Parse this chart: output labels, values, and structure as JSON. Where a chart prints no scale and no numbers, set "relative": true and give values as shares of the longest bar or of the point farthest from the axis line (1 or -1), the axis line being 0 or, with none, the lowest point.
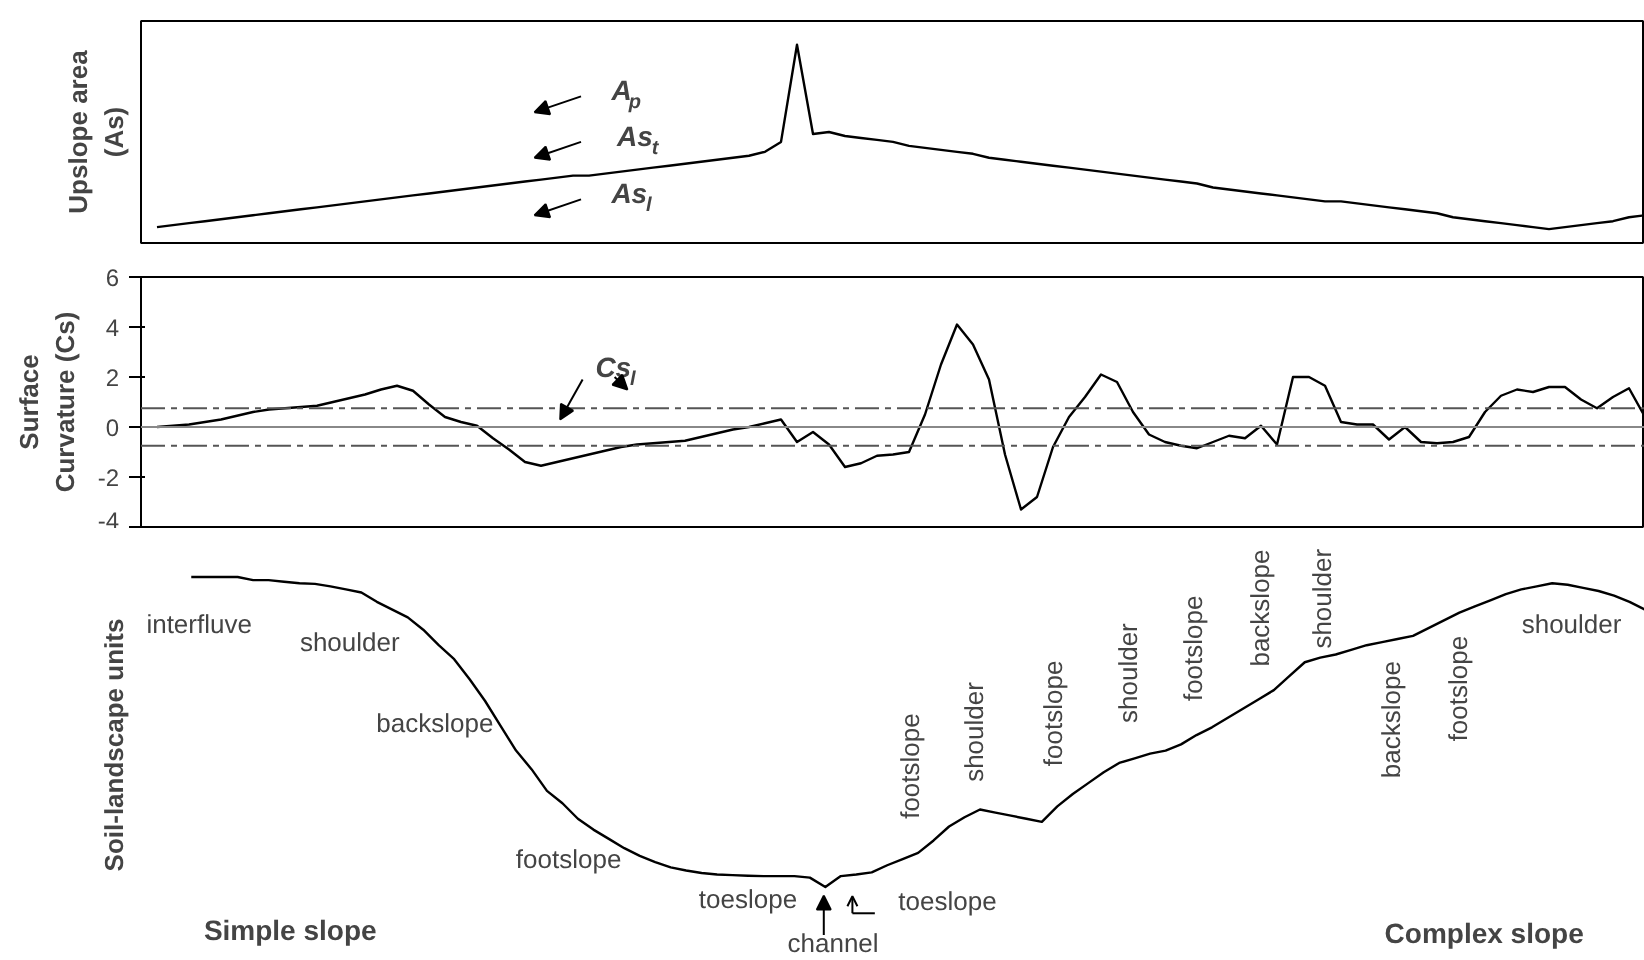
{
  "chart_data": [
    {
      "type": "line",
      "ylabel": "Upslope area\n(As)",
      "relative": true,
      "tick_labels": false,
      "color": "#000000",
      "categories": [
        null,
        null,
        null,
        null,
        null,
        null,
        null,
        null,
        null,
        null,
        null,
        null,
        null,
        null,
        null,
        null,
        null,
        null,
        null,
        null,
        null,
        null,
        null,
        null,
        null,
        null,
        null,
        null,
        null,
        null,
        null,
        null,
        null,
        null,
        null,
        null,
        null,
        null,
        null,
        null,
        null,
        null,
        null,
        null,
        null,
        null,
        null,
        null,
        null,
        null,
        null,
        null,
        null,
        null,
        null,
        null,
        null,
        null,
        null,
        null,
        null,
        null,
        null,
        null,
        null,
        null,
        null,
        null,
        null,
        null,
        null,
        null,
        null,
        null,
        null,
        null,
        null,
        null,
        null,
        null,
        null,
        null,
        null,
        null,
        null,
        null,
        null,
        null,
        null,
        null,
        null,
        null,
        null,
        null,
        null
      ],
      "values": [
        null,
        0.08,
        0.09,
        0.1,
        0.11,
        0.12,
        0.13,
        0.14,
        0.15,
        0.16,
        0.17,
        0.18,
        0.19,
        0.2,
        0.21,
        0.22,
        0.23,
        0.24,
        0.25,
        0.26,
        0.27,
        0.28,
        0.29,
        0.3,
        0.31,
        0.32,
        0.33,
        0.34,
        0.34,
        0.35,
        0.36,
        0.37,
        0.38,
        0.39,
        0.4,
        0.41,
        0.42,
        0.43,
        0.44,
        0.46,
        0.51,
        1,
        0.55,
        0.56,
        0.54,
        0.53,
        0.52,
        0.51,
        0.49,
        0.48,
        0.47,
        0.46,
        0.45,
        0.43,
        0.42,
        0.41,
        0.4,
        0.39,
        0.38,
        0.37,
        0.36,
        0.35,
        0.34,
        0.33,
        0.32,
        0.31,
        0.3,
        0.28,
        0.27,
        0.26,
        0.25,
        0.24,
        0.23,
        0.22,
        0.21,
        0.21,
        0.2,
        0.19,
        0.18,
        0.17,
        0.16,
        0.15,
        0.13,
        0.12,
        0.11,
        0.1,
        0.09,
        0.08,
        0.07,
        0.08,
        0.09,
        0.1,
        0.11,
        0.13,
        0.14
      ],
      "annotations": [
        "A$_{p}$",
        "As$_{t}$",
        "As$_{l}$"
      ]
    },
    {
      "type": "line",
      "ylabel": "Surface\nCurvature (Cs)",
      "tick_labels": "y",
      "color": "#000000",
      "ylim": [
        -4,
        6
      ],
      "yticks": [
        -4,
        -2,
        0,
        2,
        4,
        6
      ],
      "categories": [
        null,
        null,
        null,
        null,
        null,
        null,
        null,
        null,
        null,
        null,
        null,
        null,
        null,
        null,
        null,
        null,
        null,
        null,
        null,
        null,
        null,
        null,
        null,
        null,
        null,
        null,
        null,
        null,
        null,
        null,
        null,
        null,
        null,
        null,
        null,
        null,
        null,
        null,
        null,
        null,
        null,
        null,
        null,
        null,
        null,
        null,
        null,
        null,
        null,
        null,
        null,
        null,
        null,
        null,
        null,
        null,
        null,
        null,
        null,
        null,
        null,
        null,
        null,
        null,
        null,
        null,
        null,
        null,
        null,
        null,
        null,
        null,
        null,
        null,
        null,
        null,
        null,
        null,
        null,
        null,
        null,
        null,
        null,
        null,
        null,
        null,
        null,
        null,
        null,
        null,
        null,
        null,
        null,
        null,
        null
      ],
      "values": [
        null,
        0,
        0.05,
        0.1,
        0.2,
        0.3,
        0.45,
        0.6,
        0.7,
        0.75,
        0.8,
        0.85,
        1.0,
        1.15,
        1.3,
        1.5,
        1.65,
        1.45,
        0.9,
        0.4,
        0.2,
        0.05,
        -0.45,
        -0.9,
        -1.4,
        -1.55,
        -1.4,
        -1.25,
        -1.1,
        -0.95,
        -0.8,
        -0.7,
        -0.65,
        -0.6,
        -0.55,
        -0.4,
        -0.25,
        -0.1,
        0,
        0.15,
        0.3,
        -0.6,
        -0.2,
        -0.7,
        -1.6,
        -1.45,
        -1.15,
        -1.1,
        -1.0,
        0.5,
        2.5,
        4.1,
        3.3,
        1.9,
        -1.1,
        -3.3,
        -2.8,
        -0.8,
        0.4,
        1.2,
        2.1,
        1.8,
        0.6,
        -0.3,
        -0.6,
        -0.75,
        -0.85,
        -0.6,
        -0.35,
        -0.45,
        0.05,
        -0.7,
        2.0,
        2.0,
        1.65,
        0.2,
        0.1,
        0.1,
        -0.5,
        0,
        -0.6,
        -0.65,
        -0.6,
        -0.4,
        0.6,
        1.25,
        1.5,
        1.4,
        1.6,
        1.6,
        1.1,
        0.75,
        1.2,
        1.55,
        0.4
      ],
      "ref_lines": [
        {
          "axis": "y",
          "value": 0.75,
          "line_style": "dashed",
          "color": "#555555"
        },
        {
          "axis": "y",
          "value": 0,
          "line_style": "solid",
          "color": "#888888"
        },
        {
          "axis": "y",
          "value": -0.75,
          "line_style": "dashed",
          "color": "#555555"
        }
      ],
      "annotations": [
        "Cs$_{l}$"
      ]
    },
    {
      "type": "line",
      "ylabel": "Soil-landscape units",
      "relative": true,
      "tick_labels": false,
      "color": "#000000",
      "categories": [
        null,
        null,
        null,
        null,
        null,
        null,
        null,
        null,
        null,
        null,
        null,
        null,
        null,
        null,
        null,
        null,
        null,
        null,
        null,
        null,
        null,
        null,
        null,
        null,
        null,
        null,
        null,
        null,
        null,
        null,
        null,
        null,
        null,
        null,
        null,
        null,
        null,
        null,
        null,
        null,
        null,
        null,
        null,
        null,
        null,
        null,
        null,
        null,
        null,
        null,
        null,
        null,
        null,
        null,
        null,
        null,
        null,
        null,
        null,
        null,
        null,
        null,
        null,
        null,
        null,
        null,
        null,
        null,
        null,
        null,
        null,
        null,
        null,
        null,
        null,
        null,
        null,
        null,
        null,
        null,
        null,
        null,
        null,
        null,
        null,
        null,
        null,
        null,
        null,
        null,
        null,
        null,
        null,
        null,
        null
      ],
      "values": [
        1.0,
        1.0,
        1.0,
        1.0,
        0.99,
        0.99,
        0.985,
        0.98,
        0.978,
        0.97,
        0.96,
        0.95,
        0.92,
        0.895,
        0.87,
        0.83,
        0.78,
        0.735,
        0.67,
        0.6,
        0.52,
        0.44,
        0.38,
        0.31,
        0.27,
        0.22,
        0.185,
        0.155,
        0.125,
        0.1,
        0.08,
        0.063,
        0.053,
        0.045,
        0.04,
        0.038,
        0.036,
        0.035,
        0.035,
        0.035,
        0.03,
        0,
        0.035,
        0.04,
        0.047,
        0.07,
        0.09,
        0.11,
        0.15,
        0.195,
        0.225,
        0.25,
        0.24,
        0.23,
        0.22,
        0.21,
        0.26,
        0.3,
        0.335,
        0.37,
        0.4,
        0.415,
        0.43,
        0.44,
        0.46,
        0.49,
        0.515,
        0.545,
        0.575,
        0.605,
        0.635,
        0.68,
        0.725,
        0.74,
        0.75,
        0.765,
        0.78,
        0.79,
        0.8,
        0.81,
        0.835,
        0.86,
        0.885,
        0.905,
        0.925,
        0.945,
        0.96,
        0.97,
        0.98,
        0.975,
        0.965,
        0.955,
        0.94,
        0.92,
        0.895
      ],
      "annotations": [
        "interfluve",
        "shoulder",
        "backslope",
        "footslope",
        "toeslope",
        "channel",
        "toeslope",
        "footslope",
        "shoulder",
        "footslope",
        "shoulder",
        "footslope",
        "backslope",
        "shoulder",
        "backslope",
        "footslope",
        "shoulder",
        "Simple slope",
        "Complex slope"
      ]
    }
  ]
}
